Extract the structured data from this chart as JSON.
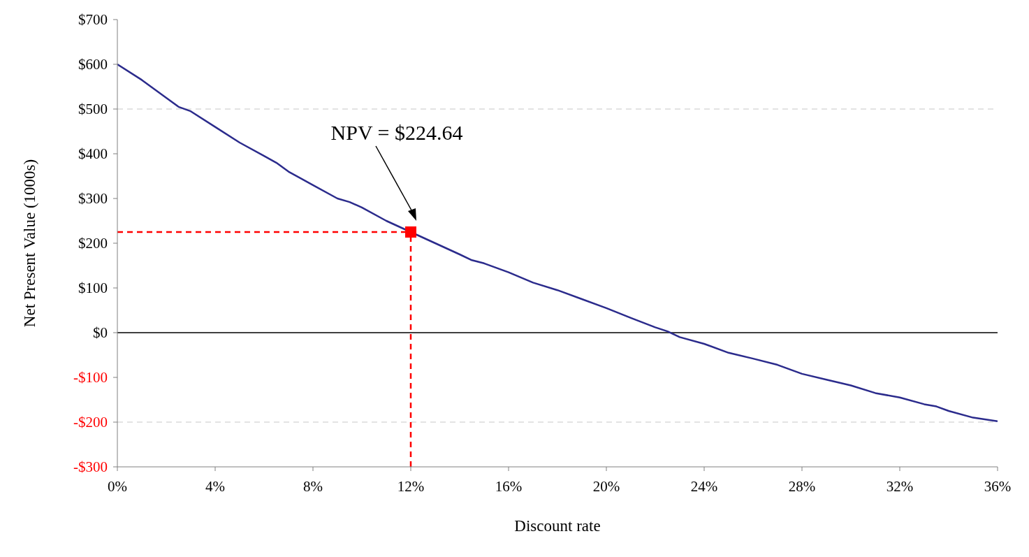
{
  "chart_data": {
    "type": "line",
    "xlabel": "Discount rate",
    "ylabel": "Net Present Value (1000s)",
    "xlim": [
      0,
      36
    ],
    "xticks": [
      {
        "value": 0,
        "label": "0%"
      },
      {
        "value": 4,
        "label": "4%"
      },
      {
        "value": 8,
        "label": "8%"
      },
      {
        "value": 12,
        "label": "12%"
      },
      {
        "value": 16,
        "label": "16%"
      },
      {
        "value": 20,
        "label": "20%"
      },
      {
        "value": 24,
        "label": "24%"
      },
      {
        "value": 28,
        "label": "28%"
      },
      {
        "value": 32,
        "label": "32%"
      },
      {
        "value": 36,
        "label": "36%"
      }
    ],
    "ylim": [
      -300,
      700
    ],
    "yticks": [
      {
        "value": -300,
        "label": "-$300"
      },
      {
        "value": -200,
        "label": "-$200"
      },
      {
        "value": -100,
        "label": "-$100"
      },
      {
        "value": 0,
        "label": "$0"
      },
      {
        "value": 100,
        "label": "$100"
      },
      {
        "value": 200,
        "label": "$200"
      },
      {
        "value": 300,
        "label": "$300"
      },
      {
        "value": 400,
        "label": "$400"
      },
      {
        "value": 500,
        "label": "$500"
      },
      {
        "value": 600,
        "label": "$600"
      },
      {
        "value": 700,
        "label": "$700"
      }
    ],
    "marker": "none",
    "series": [
      {
        "color": "#2b2b8c",
        "x": [
          0,
          1,
          2,
          2.5,
          3,
          4,
          5,
          6,
          6.5,
          7,
          8,
          9,
          9.5,
          10,
          11,
          12,
          13,
          14,
          14.5,
          15,
          16,
          17,
          18,
          19,
          20,
          21,
          22,
          22.5,
          23,
          24,
          25,
          26,
          27,
          28,
          29,
          30,
          31,
          32,
          33,
          33.5,
          34,
          35,
          36
        ],
        "values": [
          600,
          565,
          525,
          505,
          495,
          460,
          425,
          395,
          380,
          360,
          330,
          300,
          292,
          280,
          250,
          null,
          200,
          175,
          162,
          155,
          135,
          112,
          95,
          75,
          55,
          33,
          12,
          3,
          -10,
          -25,
          -45,
          -58,
          -72,
          -92,
          -105,
          -118,
          -135,
          -145,
          -160,
          -165,
          -175,
          -190,
          -198
        ]
      },
      {
        "type": "line",
        "line_style": "dashed",
        "color": "#ff0000",
        "x": [
          0,
          12
        ],
        "values": [
          225,
          225
        ]
      },
      {
        "type": "line",
        "line_style": "dashed",
        "color": "#ff0000",
        "x": [
          12,
          12
        ],
        "values": [
          -300,
          225
        ]
      },
      {
        "type": "scatter",
        "marker": "square",
        "color": "#ff0000",
        "x": [
          12
        ],
        "values": [
          225
        ]
      }
    ],
    "ref_lines": [
      {
        "axis": "y",
        "value": 0,
        "color": "#000000",
        "line_style": "solid"
      },
      {
        "axis": "y",
        "value": 500,
        "color": "#c8c8c8",
        "line_style": "dashed"
      },
      {
        "axis": "y",
        "value": -200,
        "color": "#c8c8c8",
        "line_style": "dashed"
      }
    ],
    "annotations": [
      "NPV = $224.64"
    ]
  }
}
